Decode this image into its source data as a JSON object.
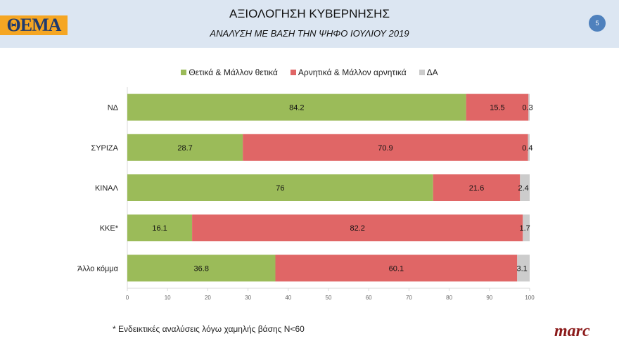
{
  "header": {
    "logo": "ΘΕΜΑ",
    "title": "ΑΞΙΟΛΟΓΗΣΗ ΚΥΒΕΡΝΗΣΗΣ",
    "subtitle": "ΑΝΑΛΥΣΗ ΜΕ ΒΑΣΗ ΤΗΝ ΨΗΦΟ ΙΟΥΛΙΟΥ 2019",
    "page_number": "5"
  },
  "footnote": "* Ενδεικτικές αναλύσεις λόγω χαμηλής βάσης N<60",
  "brand": "marc",
  "chart_data": {
    "type": "bar",
    "orientation": "horizontal",
    "stacked": true,
    "categories": [
      "ΝΔ",
      "ΣΥΡΙΖΑ",
      "ΚΙΝΑΛ",
      "ΚΚΕ*",
      "Άλλο κόμμα"
    ],
    "series": [
      {
        "name": "Θετικά & Μάλλον θετικά",
        "color": "#9bbb59",
        "values": [
          84.2,
          28.7,
          76,
          16.1,
          36.8
        ]
      },
      {
        "name": "Αρνητικά & Μάλλον αρνητικά",
        "color": "#e06666",
        "values": [
          15.5,
          70.9,
          21.6,
          82.2,
          60.1
        ]
      },
      {
        "name": "ΔΑ",
        "color": "#cccccc",
        "values": [
          0.3,
          0.4,
          2.4,
          1.7,
          3.1
        ]
      }
    ],
    "xlim": [
      0,
      100
    ],
    "xticks": [
      "0",
      "10",
      "20",
      "30",
      "40",
      "50",
      "60",
      "70",
      "80",
      "90",
      "100"
    ],
    "legend": "top",
    "grid": false
  }
}
